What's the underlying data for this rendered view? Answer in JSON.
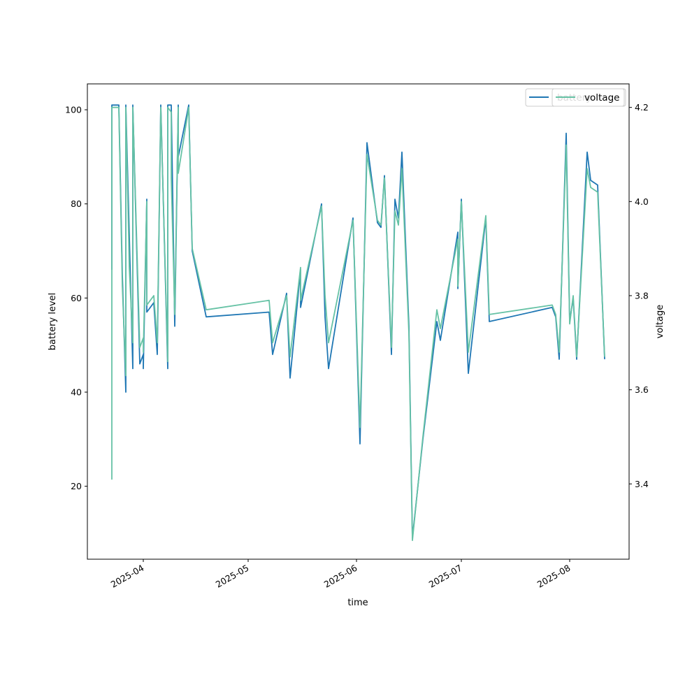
{
  "chart_data": {
    "type": "line",
    "xlabel": "time",
    "y1label": "battery level",
    "y2label": "voltage",
    "x_tick_labels": [
      "2025-04",
      "2025-05",
      "2025-06",
      "2025-07",
      "2025-08"
    ],
    "x_tick_dates": [
      "2025-04-01",
      "2025-05-01",
      "2025-06-01",
      "2025-07-01",
      "2025-08-01"
    ],
    "xlim": [
      "2025-03-16",
      "2025-08-18"
    ],
    "y1_ticks": [
      20,
      40,
      60,
      80,
      100
    ],
    "y1lim": [
      4.5,
      105.5
    ],
    "y2_ticks": [
      3.4,
      3.6,
      3.8,
      4.0,
      4.2
    ],
    "y2_tick_labels": [
      "3.4",
      "3.6",
      "3.8",
      "4.0",
      "4.2"
    ],
    "y2lim": [
      3.24,
      4.25
    ],
    "legend_placement": "top-right",
    "colors": {
      "battery": "#1f77b4",
      "voltage": "#66c2a5"
    },
    "series": [
      {
        "name": "battery",
        "axis": "left",
        "points": [
          [
            "2025-03-23",
            66
          ],
          [
            "2025-03-23",
            101
          ],
          [
            "2025-03-24",
            101
          ],
          [
            "2025-03-25",
            101
          ],
          [
            "2025-03-26",
            65
          ],
          [
            "2025-03-27",
            40
          ],
          [
            "2025-03-27",
            101
          ],
          [
            "2025-03-29",
            45
          ],
          [
            "2025-03-29",
            101
          ],
          [
            "2025-03-31",
            46
          ],
          [
            "2025-04-01",
            48
          ],
          [
            "2025-04-01",
            45
          ],
          [
            "2025-04-02",
            81
          ],
          [
            "2025-04-02",
            57
          ],
          [
            "2025-04-04",
            59
          ],
          [
            "2025-04-05",
            48
          ],
          [
            "2025-04-06",
            101
          ],
          [
            "2025-04-06",
            101
          ],
          [
            "2025-04-08",
            45
          ],
          [
            "2025-04-08",
            101
          ],
          [
            "2025-04-09",
            101
          ],
          [
            "2025-04-10",
            54
          ],
          [
            "2025-04-11",
            101
          ],
          [
            "2025-04-11",
            90
          ],
          [
            "2025-04-14",
            101
          ],
          [
            "2025-04-15",
            70
          ],
          [
            "2025-04-19",
            56
          ],
          [
            "2025-05-07",
            57
          ],
          [
            "2025-05-08",
            48
          ],
          [
            "2025-05-12",
            61
          ],
          [
            "2025-05-13",
            43
          ],
          [
            "2025-05-16",
            66
          ],
          [
            "2025-05-16",
            58
          ],
          [
            "2025-05-22",
            80
          ],
          [
            "2025-05-23",
            56
          ],
          [
            "2025-05-24",
            45
          ],
          [
            "2025-05-31",
            77
          ],
          [
            "2025-06-02",
            29
          ],
          [
            "2025-06-04",
            93
          ],
          [
            "2025-06-07",
            76
          ],
          [
            "2025-06-08",
            75
          ],
          [
            "2025-06-09",
            86
          ],
          [
            "2025-06-11",
            48
          ],
          [
            "2025-06-12",
            81
          ],
          [
            "2025-06-13",
            77
          ],
          [
            "2025-06-14",
            91
          ],
          [
            "2025-06-16",
            54
          ],
          [
            "2025-06-17",
            9
          ],
          [
            "2025-06-20",
            30
          ],
          [
            "2025-06-24",
            55
          ],
          [
            "2025-06-25",
            51
          ],
          [
            "2025-06-30",
            74
          ],
          [
            "2025-06-30",
            62
          ],
          [
            "2025-07-01",
            81
          ],
          [
            "2025-07-03",
            44
          ],
          [
            "2025-07-08",
            77
          ],
          [
            "2025-07-09",
            55
          ],
          [
            "2025-07-27",
            58
          ],
          [
            "2025-07-28",
            56
          ],
          [
            "2025-07-29",
            47
          ],
          [
            "2025-07-31",
            95
          ],
          [
            "2025-08-01",
            55
          ],
          [
            "2025-08-02",
            60
          ],
          [
            "2025-08-03",
            47
          ],
          [
            "2025-08-06",
            91
          ],
          [
            "2025-08-07",
            85
          ],
          [
            "2025-08-09",
            84
          ],
          [
            "2025-08-11",
            47
          ]
        ]
      },
      {
        "name": "voltage",
        "axis": "right",
        "points": [
          [
            "2025-03-23",
            3.86
          ],
          [
            "2025-03-23",
            3.41
          ],
          [
            "2025-03-23",
            4.2
          ],
          [
            "2025-03-24",
            4.2
          ],
          [
            "2025-03-25",
            4.2
          ],
          [
            "2025-03-26",
            3.82
          ],
          [
            "2025-03-27",
            3.63
          ],
          [
            "2025-03-27",
            4.2
          ],
          [
            "2025-03-28",
            3.86
          ],
          [
            "2025-03-29",
            3.7
          ],
          [
            "2025-03-29",
            4.2
          ],
          [
            "2025-03-31",
            3.69
          ],
          [
            "2025-04-01",
            3.71
          ],
          [
            "2025-04-01",
            3.68
          ],
          [
            "2025-04-02",
            4.0
          ],
          [
            "2025-04-02",
            3.78
          ],
          [
            "2025-04-04",
            3.8
          ],
          [
            "2025-04-05",
            3.7
          ],
          [
            "2025-04-06",
            4.2
          ],
          [
            "2025-04-08",
            3.66
          ],
          [
            "2025-04-08",
            4.2
          ],
          [
            "2025-04-09",
            4.19
          ],
          [
            "2025-04-09",
            4.05
          ],
          [
            "2025-04-10",
            3.76
          ],
          [
            "2025-04-11",
            4.2
          ],
          [
            "2025-04-11",
            4.06
          ],
          [
            "2025-04-14",
            4.2
          ],
          [
            "2025-04-15",
            3.9
          ],
          [
            "2025-04-19",
            3.77
          ],
          [
            "2025-05-07",
            3.79
          ],
          [
            "2025-05-08",
            3.7
          ],
          [
            "2025-05-12",
            3.8
          ],
          [
            "2025-05-13",
            3.67
          ],
          [
            "2025-05-16",
            3.86
          ],
          [
            "2025-05-16",
            3.79
          ],
          [
            "2025-05-22",
            3.99
          ],
          [
            "2025-05-23",
            3.8
          ],
          [
            "2025-05-24",
            3.7
          ],
          [
            "2025-05-31",
            3.96
          ],
          [
            "2025-06-02",
            3.52
          ],
          [
            "2025-06-04",
            4.1
          ],
          [
            "2025-06-07",
            3.96
          ],
          [
            "2025-06-08",
            3.95
          ],
          [
            "2025-06-09",
            4.05
          ],
          [
            "2025-06-11",
            3.69
          ],
          [
            "2025-06-12",
            3.98
          ],
          [
            "2025-06-13",
            3.95
          ],
          [
            "2025-06-14",
            4.07
          ],
          [
            "2025-06-16",
            3.72
          ],
          [
            "2025-06-17",
            3.28
          ],
          [
            "2025-06-20",
            3.5
          ],
          [
            "2025-06-24",
            3.77
          ],
          [
            "2025-06-25",
            3.73
          ],
          [
            "2025-06-30",
            3.92
          ],
          [
            "2025-06-30",
            3.82
          ],
          [
            "2025-07-01",
            4.0
          ],
          [
            "2025-07-03",
            3.68
          ],
          [
            "2025-07-08",
            3.97
          ],
          [
            "2025-07-09",
            3.76
          ],
          [
            "2025-07-27",
            3.78
          ],
          [
            "2025-07-28",
            3.76
          ],
          [
            "2025-07-29",
            3.68
          ],
          [
            "2025-07-31",
            4.12
          ],
          [
            "2025-08-01",
            3.74
          ],
          [
            "2025-08-02",
            3.8
          ],
          [
            "2025-08-03",
            3.67
          ],
          [
            "2025-08-06",
            4.07
          ],
          [
            "2025-08-07",
            4.03
          ],
          [
            "2025-08-09",
            4.02
          ],
          [
            "2025-08-11",
            3.67
          ]
        ]
      }
    ]
  }
}
